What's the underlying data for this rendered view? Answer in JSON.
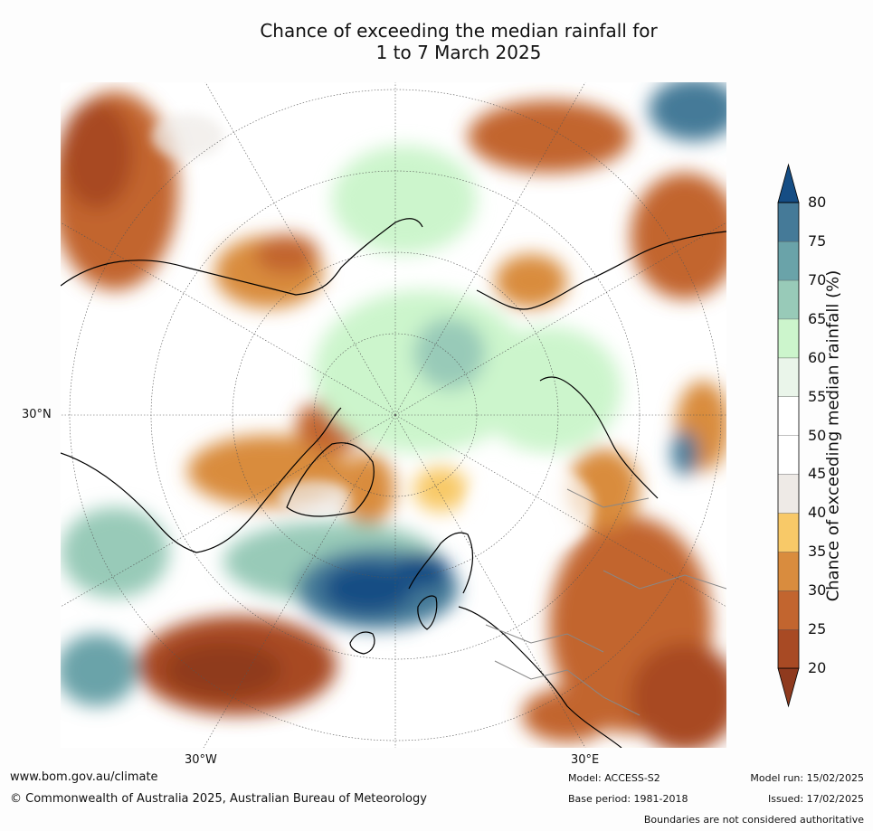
{
  "title_line1": "Chance of exceeding the median rainfall for",
  "title_line2": "1 to 7 March 2025",
  "map": {
    "lat_label": "30°N",
    "lon_labels": [
      "30°W",
      "30°E"
    ],
    "land_color": "#ffffff",
    "coastline_color": "#000000",
    "border_color": "#808080"
  },
  "colorbar": {
    "label": "Chance of exceeding median rainfall (%)",
    "ticks": [
      "20",
      "25",
      "30",
      "35",
      "40",
      "45",
      "50",
      "55",
      "60",
      "65",
      "70",
      "75",
      "80"
    ],
    "colors": [
      "#8f3a1e",
      "#a84a24",
      "#c2652f",
      "#d98c3e",
      "#f8c968",
      "#eeeae6",
      "#ffffff",
      "#ffffff",
      "#eaf5ea",
      "#ccf5cc",
      "#98cab8",
      "#6aa3a9",
      "#457a98",
      "#154d84"
    ]
  },
  "footer": {
    "website": "www.bom.gov.au/climate",
    "copyright": "© Commonwealth of Australia 2025, Australian Bureau of Meteorology",
    "model": "Model: ACCESS-S2",
    "base_period": "Base period: 1981-2018",
    "model_run": "Model run: 15/02/2025",
    "issued": "Issued: 17/02/2025",
    "disclaimer": "Boundaries are not considered authoritative"
  }
}
